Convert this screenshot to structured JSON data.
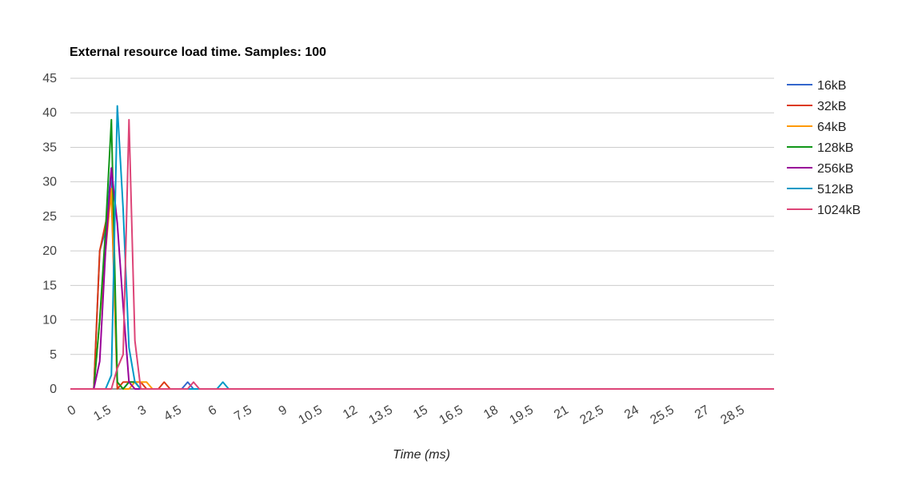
{
  "chart_data": {
    "type": "line",
    "title": "External resource load time. Samples: 100",
    "xlabel": "Time (ms)",
    "ylabel": "",
    "xlim": [
      0,
      30
    ],
    "ylim": [
      0,
      45
    ],
    "x_ticks": [
      "0",
      "1.5",
      "3",
      "4.5",
      "6",
      "7.5",
      "9",
      "10.5",
      "12",
      "13.5",
      "15",
      "16.5",
      "18",
      "19.5",
      "21",
      "22.5",
      "24",
      "25.5",
      "27",
      "28.5"
    ],
    "y_ticks": [
      "0",
      "5",
      "10",
      "15",
      "20",
      "25",
      "30",
      "35",
      "40",
      "45"
    ],
    "grid": true,
    "legend": "right",
    "x": [
      0,
      0.25,
      0.5,
      0.75,
      1,
      1.25,
      1.5,
      1.75,
      2,
      2.25,
      2.5,
      2.75,
      3,
      3.25,
      3.5,
      3.75,
      4,
      4.25,
      4.5,
      4.75,
      5,
      5.25,
      5.5,
      5.75,
      6,
      6.25,
      6.5,
      6.75,
      7,
      7.25,
      7.5,
      7.75,
      8,
      30
    ],
    "series": [
      {
        "name": "16kB",
        "color": "#3366cc",
        "values": [
          0,
          0,
          0,
          0,
          0,
          20,
          23,
          32,
          1,
          0,
          1,
          1,
          0,
          0,
          0,
          0,
          0,
          0,
          0,
          0,
          1,
          0,
          0,
          0,
          0,
          0,
          0,
          0,
          0,
          0,
          0,
          0,
          0,
          0
        ]
      },
      {
        "name": "32kB",
        "color": "#dc3912",
        "values": [
          0,
          0,
          0,
          0,
          0,
          20,
          24,
          28,
          0,
          1,
          1,
          1,
          1,
          0,
          0,
          0,
          1,
          0,
          0,
          0,
          0,
          0,
          0,
          0,
          0,
          0,
          0,
          0,
          0,
          0,
          0,
          0,
          0,
          0
        ]
      },
      {
        "name": "64kB",
        "color": "#ff9900",
        "values": [
          0,
          0,
          0,
          0,
          0,
          10,
          20,
          29,
          1,
          0,
          0,
          1,
          1,
          1,
          0,
          0,
          0,
          0,
          0,
          0,
          0,
          0,
          0,
          0,
          0,
          0,
          0,
          0,
          0,
          0,
          0,
          0,
          0,
          0
        ]
      },
      {
        "name": "128kB",
        "color": "#109618",
        "values": [
          0,
          0,
          0,
          0,
          0,
          10,
          23,
          39,
          1,
          0,
          1,
          1,
          0,
          0,
          0,
          0,
          0,
          0,
          0,
          0,
          0,
          0,
          0,
          0,
          0,
          0,
          0,
          0,
          0,
          0,
          0,
          0,
          0,
          0
        ]
      },
      {
        "name": "256kB",
        "color": "#990099",
        "values": [
          0,
          0,
          0,
          0,
          0,
          4,
          20,
          32,
          24,
          12,
          1,
          0,
          0,
          0,
          0,
          0,
          0,
          0,
          0,
          0,
          0,
          0,
          0,
          0,
          0,
          0,
          0,
          0,
          0,
          0,
          0,
          0,
          0,
          0
        ]
      },
      {
        "name": "512kB",
        "color": "#0099c6",
        "values": [
          0,
          0,
          0,
          0,
          0,
          0,
          0,
          2,
          41,
          26,
          6,
          1,
          0,
          0,
          0,
          0,
          0,
          0,
          0,
          0,
          0,
          0,
          0,
          0,
          0,
          0,
          1,
          0,
          0,
          0,
          0,
          0,
          0,
          0
        ]
      },
      {
        "name": "1024kB",
        "color": "#dd4477",
        "values": [
          0,
          0,
          0,
          0,
          0,
          0,
          0,
          0,
          3,
          5,
          39,
          7,
          0,
          0,
          0,
          0,
          0,
          0,
          0,
          0,
          0,
          1,
          0,
          0,
          0,
          0,
          0,
          0,
          0,
          0,
          0,
          0,
          0,
          0
        ]
      }
    ]
  }
}
